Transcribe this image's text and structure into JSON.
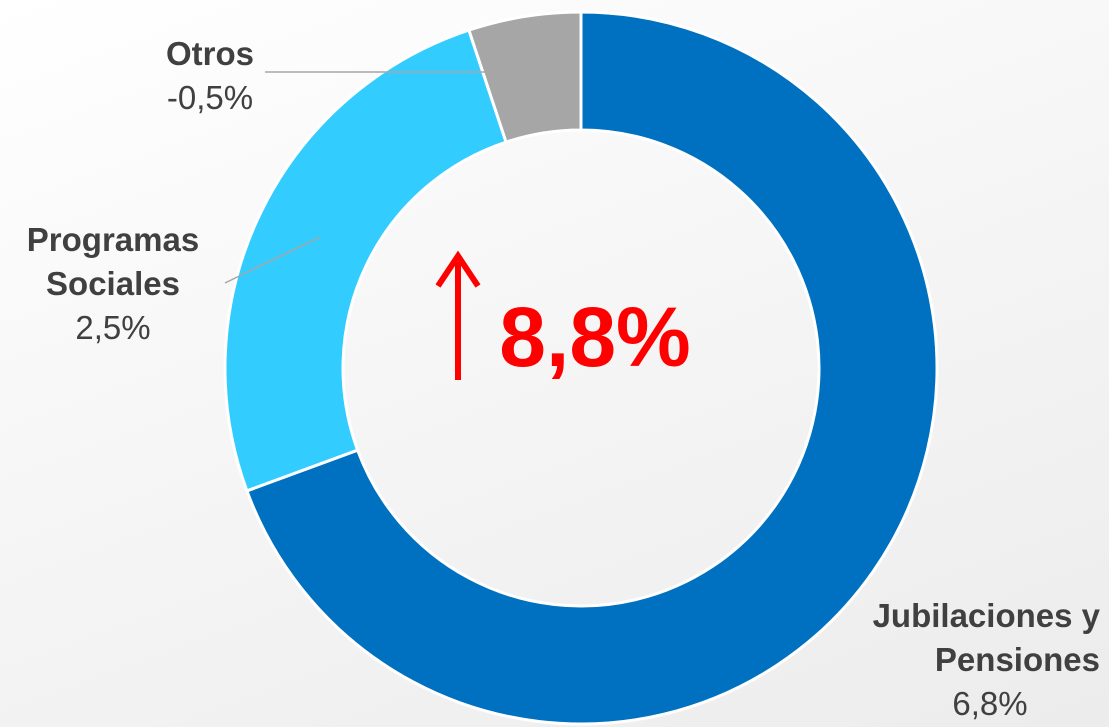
{
  "chart_data": {
    "type": "donut",
    "categories": [
      "Jubilaciones y Pensiones",
      "Programas Sociales",
      "Otros"
    ],
    "values": [
      6.8,
      2.5,
      -0.5
    ],
    "value_labels": [
      "6,8%",
      "2,5%",
      "-0,5%"
    ],
    "colors": [
      "#0070c0",
      "#33ccff",
      "#a6a6a6"
    ],
    "total": 8.8,
    "total_label": "8,8%",
    "total_color": "#ff0000"
  }
}
